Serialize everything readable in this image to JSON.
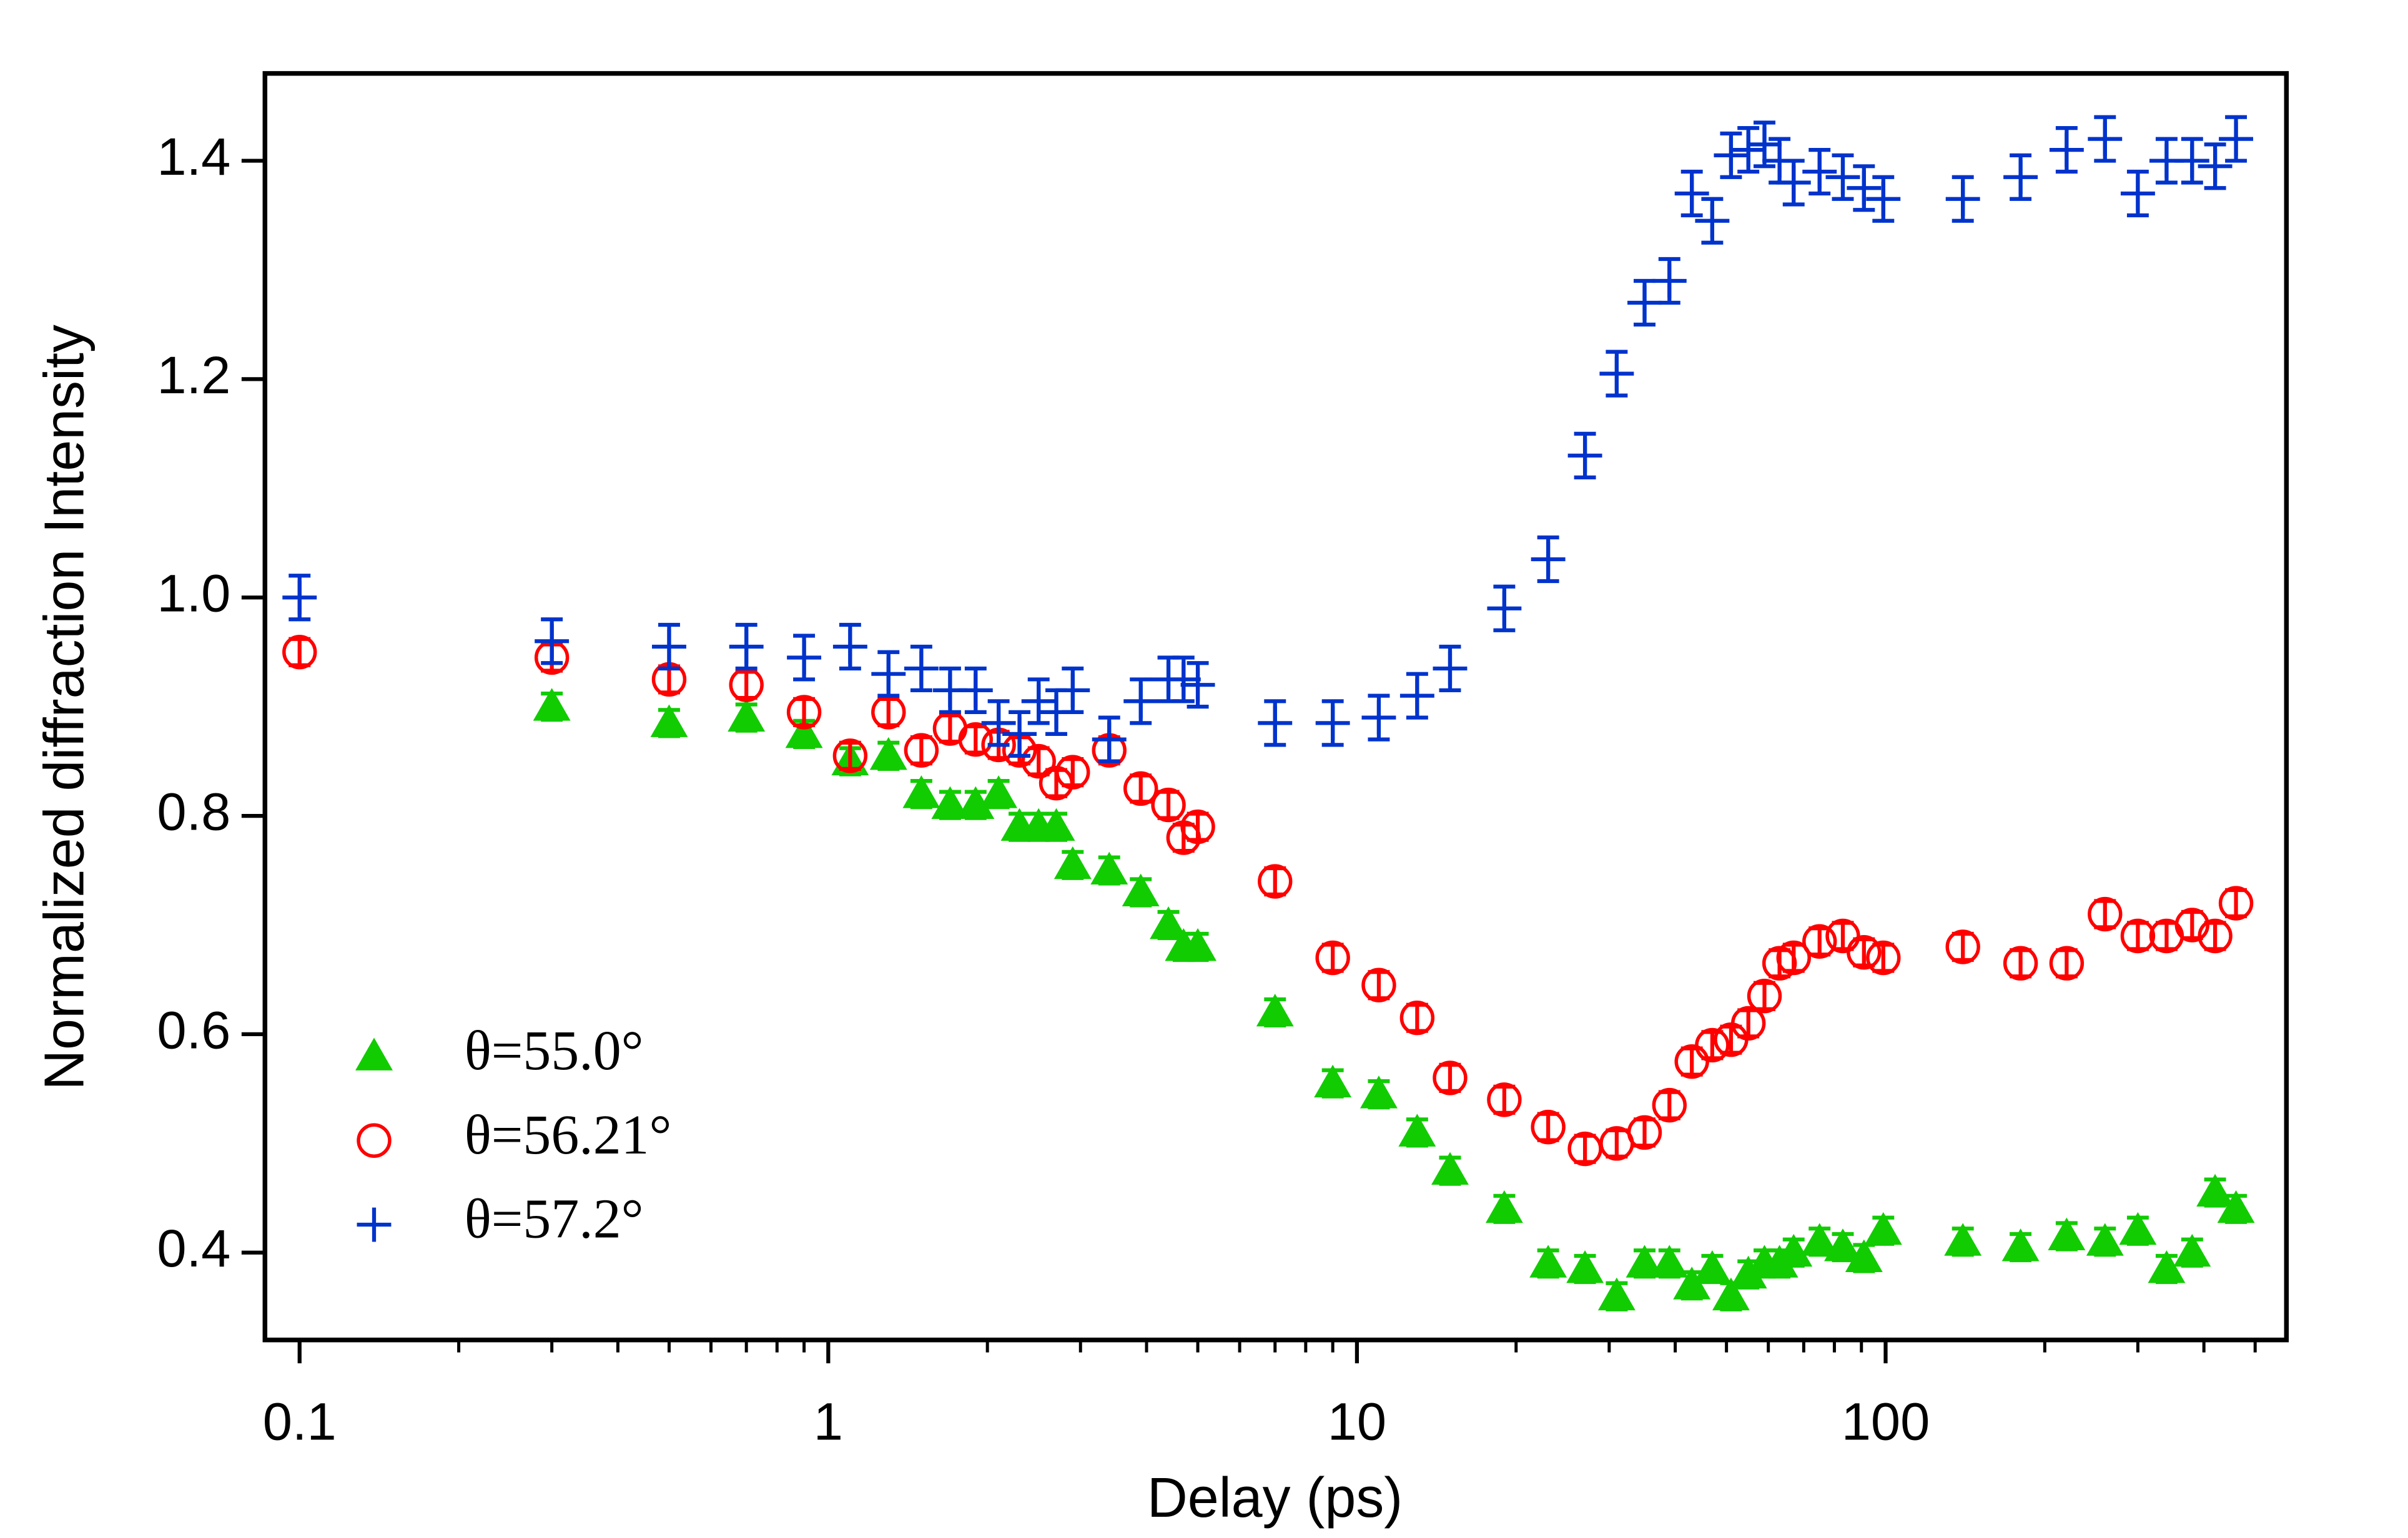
{
  "chart_data": {
    "type": "scatter",
    "xlabel": "Delay (ps)",
    "ylabel": "Normalized diffraction Intensity",
    "xscale": "log",
    "xlim": [
      0.086,
      573
    ],
    "ylim": [
      0.32,
      1.48
    ],
    "xticks": [
      0.1,
      1,
      10,
      100
    ],
    "xminorticks": [
      0.2,
      0.3,
      0.4,
      0.5,
      0.6,
      0.7,
      0.8,
      0.9,
      2,
      3,
      4,
      5,
      6,
      7,
      8,
      9,
      20,
      30,
      40,
      50,
      60,
      70,
      80,
      90,
      200,
      300,
      400,
      500
    ],
    "yticks": [
      0.4,
      0.6,
      0.8,
      {
        "value": 1,
        "label": "1.0"
      },
      1.2,
      1.4
    ],
    "grid": false,
    "legend": "lower left",
    "x": [
      0.1,
      0.3,
      0.5,
      0.7,
      0.9,
      1.1,
      1.3,
      1.5,
      1.7,
      1.9,
      2.1,
      2.3,
      2.5,
      2.7,
      2.9,
      3.4,
      3.9,
      4.4,
      4.7,
      5.0,
      7,
      9,
      11,
      13,
      15,
      19,
      23,
      27,
      31,
      35,
      39,
      43,
      47,
      51,
      55,
      59,
      63,
      67,
      75,
      83,
      91,
      99,
      140,
      180,
      220,
      260,
      300,
      340,
      380,
      420,
      460
    ],
    "series": [
      {
        "name": "θ=55.0°",
        "color": "#11cc00",
        "marker": "triangle",
        "error": 0.012,
        "values": [
          null,
          0.9,
          0.885,
          0.89,
          0.875,
          0.85,
          0.855,
          0.82,
          0.81,
          0.81,
          0.82,
          0.79,
          0.79,
          0.79,
          0.755,
          0.75,
          0.73,
          0.7,
          0.68,
          0.68,
          0.62,
          0.555,
          0.545,
          0.51,
          0.475,
          0.44,
          0.39,
          0.385,
          0.36,
          0.39,
          0.39,
          0.37,
          0.385,
          0.36,
          0.38,
          0.39,
          0.39,
          0.4,
          0.41,
          0.405,
          0.395,
          0.42,
          0.41,
          0.405,
          0.415,
          0.41,
          0.42,
          0.385,
          0.4,
          0.455,
          0.44
        ]
      },
      {
        "name": "θ=56.21°",
        "color": "#ff0000",
        "marker": "circle",
        "error": 0.012,
        "values": [
          0.95,
          0.945,
          0.925,
          0.92,
          0.895,
          0.855,
          0.895,
          0.86,
          0.88,
          0.87,
          0.865,
          0.86,
          0.85,
          0.83,
          0.84,
          0.86,
          0.825,
          0.81,
          0.78,
          0.79,
          0.74,
          0.67,
          0.645,
          0.615,
          0.56,
          0.54,
          0.515,
          0.495,
          0.5,
          0.51,
          0.535,
          0.575,
          0.59,
          0.595,
          0.61,
          0.635,
          0.665,
          0.67,
          0.685,
          0.69,
          0.675,
          0.67,
          0.68,
          0.665,
          0.665,
          0.71,
          0.69,
          0.69,
          0.7,
          0.69,
          0.72
        ]
      },
      {
        "name": "θ=57.2°",
        "color": "#0033cc",
        "marker": "plus",
        "error": 0.02,
        "values": [
          1.0,
          0.96,
          0.955,
          0.955,
          0.945,
          0.955,
          0.93,
          0.935,
          0.915,
          0.915,
          0.885,
          0.875,
          0.905,
          0.895,
          0.915,
          0.87,
          0.905,
          0.925,
          0.925,
          0.92,
          0.885,
          0.885,
          0.89,
          0.91,
          0.935,
          0.99,
          1.035,
          1.13,
          1.205,
          1.27,
          1.29,
          1.37,
          1.345,
          1.405,
          1.41,
          1.415,
          1.4,
          1.38,
          1.39,
          1.385,
          1.375,
          1.365,
          1.365,
          1.385,
          1.41,
          1.42,
          1.37,
          1.4,
          1.4,
          1.395,
          1.42
        ]
      }
    ]
  }
}
